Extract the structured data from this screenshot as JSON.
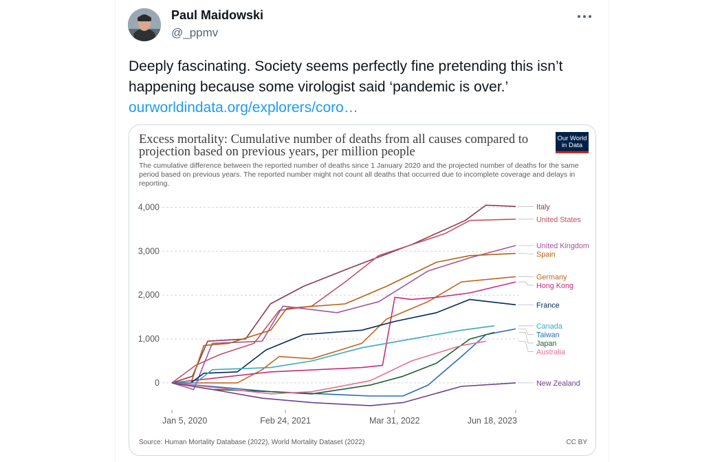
{
  "tweet": {
    "author_name": "Paul Maidowski",
    "author_handle": "@_ppmv",
    "text": "Deeply fascinating. Society seems perfectly fine pretending this isn’t happening because some virologist said ‘pandemic is over.’",
    "link": "ourworldindata.org/explorers/coro…"
  },
  "card": {
    "logo_line1": "Our World",
    "logo_line2": "in Data",
    "source": "Source: Human Mortality Database (2022), World Mortality Dataset (2022)",
    "license": "CC BY"
  },
  "chart_data": {
    "type": "line",
    "title": "Excess mortality: Cumulative number of deaths from all causes compared to projection based on previous years, per million people",
    "subtitle": "The cumulative difference between the reported number of deaths since 1 January 2020 and the projected number of deaths for the same period based on previous years. The reported number might not count all deaths that occurred due to incomplete coverage and delays in reporting.",
    "xlabel": "",
    "ylabel": "",
    "x_tick_labels": [
      "Jan 5, 2020",
      "Feb 24, 2021",
      "Mar 31, 2022",
      "Jun 18, 2023"
    ],
    "y_ticks": [
      0,
      1000,
      2000,
      3000,
      4000
    ],
    "y_tick_labels": [
      "0",
      "1,000",
      "2,000",
      "3,000",
      "4,000"
    ],
    "ylim": [
      -550,
      4150
    ],
    "grid": "horizontal dotted",
    "legend": "right (line-end labels)",
    "series": [
      {
        "name": "Italy",
        "color": "#8c3a4e",
        "x": [
          "2020-01-05",
          "2020-03-20",
          "2020-05-15",
          "2020-10-01",
          "2020-12-31",
          "2021-05-01",
          "2021-11-01",
          "2022-06-01",
          "2022-12-15",
          "2023-03-01",
          "2023-06-18"
        ],
        "values": [
          0,
          150,
          950,
          1000,
          1800,
          2200,
          2650,
          3150,
          3700,
          4050,
          4020
        ]
      },
      {
        "name": "United States",
        "color": "#c15065",
        "x": [
          "2020-01-05",
          "2020-04-01",
          "2020-07-01",
          "2020-11-01",
          "2021-02-01",
          "2021-06-01",
          "2021-10-01",
          "2022-02-01",
          "2022-10-01",
          "2023-01-01",
          "2023-06-18"
        ],
        "values": [
          0,
          400,
          650,
          900,
          1650,
          1750,
          2300,
          2900,
          3400,
          3700,
          3730
        ]
      },
      {
        "name": "United Kingdom",
        "color": "#a2559c",
        "x": [
          "2020-01-05",
          "2020-03-25",
          "2020-06-01",
          "2020-12-01",
          "2021-02-15",
          "2021-09-01",
          "2022-02-01",
          "2022-08-01",
          "2023-01-01",
          "2023-06-18"
        ],
        "values": [
          0,
          -150,
          900,
          950,
          1750,
          1600,
          1850,
          2550,
          2850,
          3130
        ]
      },
      {
        "name": "Spain",
        "color": "#b16214",
        "x": [
          "2020-01-05",
          "2020-03-15",
          "2020-05-01",
          "2020-08-01",
          "2021-01-01",
          "2021-03-01",
          "2021-10-01",
          "2022-03-01",
          "2022-09-01",
          "2023-01-01",
          "2023-06-18"
        ],
        "values": [
          0,
          0,
          850,
          900,
          1200,
          1700,
          1800,
          2200,
          2750,
          2900,
          2950
        ]
      },
      {
        "name": "Germany",
        "color": "#c0661f",
        "x": [
          "2020-01-05",
          "2020-09-01",
          "2020-12-01",
          "2021-02-01",
          "2021-06-01",
          "2021-12-01",
          "2022-03-01",
          "2022-08-01",
          "2022-12-01",
          "2023-06-18"
        ],
        "values": [
          0,
          0,
          300,
          600,
          550,
          900,
          1450,
          1850,
          2300,
          2420
        ]
      },
      {
        "name": "Hong Kong",
        "color": "#c62b80",
        "x": [
          "2020-01-05",
          "2021-01-01",
          "2021-12-01",
          "2022-02-15",
          "2022-04-01",
          "2022-06-01",
          "2022-09-01",
          "2023-01-01",
          "2023-06-18"
        ],
        "values": [
          0,
          250,
          350,
          400,
          1950,
          1900,
          1950,
          2050,
          2300
        ]
      },
      {
        "name": "France",
        "color": "#00295b",
        "x": [
          "2020-01-05",
          "2020-03-15",
          "2020-05-01",
          "2020-09-01",
          "2020-12-15",
          "2021-05-01",
          "2021-12-01",
          "2022-04-01",
          "2022-09-01",
          "2022-12-31",
          "2023-06-18"
        ],
        "values": [
          0,
          0,
          220,
          250,
          750,
          1100,
          1200,
          1400,
          1600,
          1900,
          1780
        ]
      },
      {
        "name": "Canada",
        "color": "#38aaba",
        "x": [
          "2020-01-05",
          "2020-04-01",
          "2020-06-01",
          "2021-01-01",
          "2021-06-01",
          "2021-12-01",
          "2022-06-01",
          "2022-12-01",
          "2023-04-01"
        ],
        "values": [
          0,
          0,
          300,
          350,
          500,
          800,
          1000,
          1200,
          1300
        ]
      },
      {
        "name": "Taiwan",
        "color": "#286bbb",
        "x": [
          "2020-01-05",
          "2021-01-01",
          "2022-01-01",
          "2022-05-01",
          "2022-08-01",
          "2022-12-01",
          "2023-03-01",
          "2023-06-18"
        ],
        "values": [
          0,
          -200,
          -300,
          -300,
          -50,
          600,
          1100,
          1230
        ]
      },
      {
        "name": "Japan",
        "color": "#1d5e32",
        "x": [
          "2020-01-05",
          "2020-06-01",
          "2021-01-01",
          "2021-06-01",
          "2022-01-01",
          "2022-05-01",
          "2022-09-01",
          "2023-01-01",
          "2023-04-01"
        ],
        "values": [
          0,
          -150,
          -200,
          -250,
          -50,
          150,
          450,
          1000,
          1150
        ]
      },
      {
        "name": "Australia",
        "color": "#e56e90",
        "x": [
          "2020-01-05",
          "2020-06-01",
          "2021-01-01",
          "2021-06-01",
          "2022-01-01",
          "2022-06-01",
          "2022-12-01",
          "2023-03-01"
        ],
        "values": [
          0,
          -100,
          -250,
          -200,
          50,
          500,
          850,
          950
        ]
      },
      {
        "name": "New Zealand",
        "color": "#6d3e91",
        "x": [
          "2020-01-05",
          "2020-06-01",
          "2020-12-01",
          "2021-06-01",
          "2022-01-01",
          "2022-05-01",
          "2022-12-01",
          "2023-06-18"
        ],
        "values": [
          0,
          -150,
          -350,
          -450,
          -520,
          -450,
          -80,
          0
        ]
      }
    ]
  }
}
